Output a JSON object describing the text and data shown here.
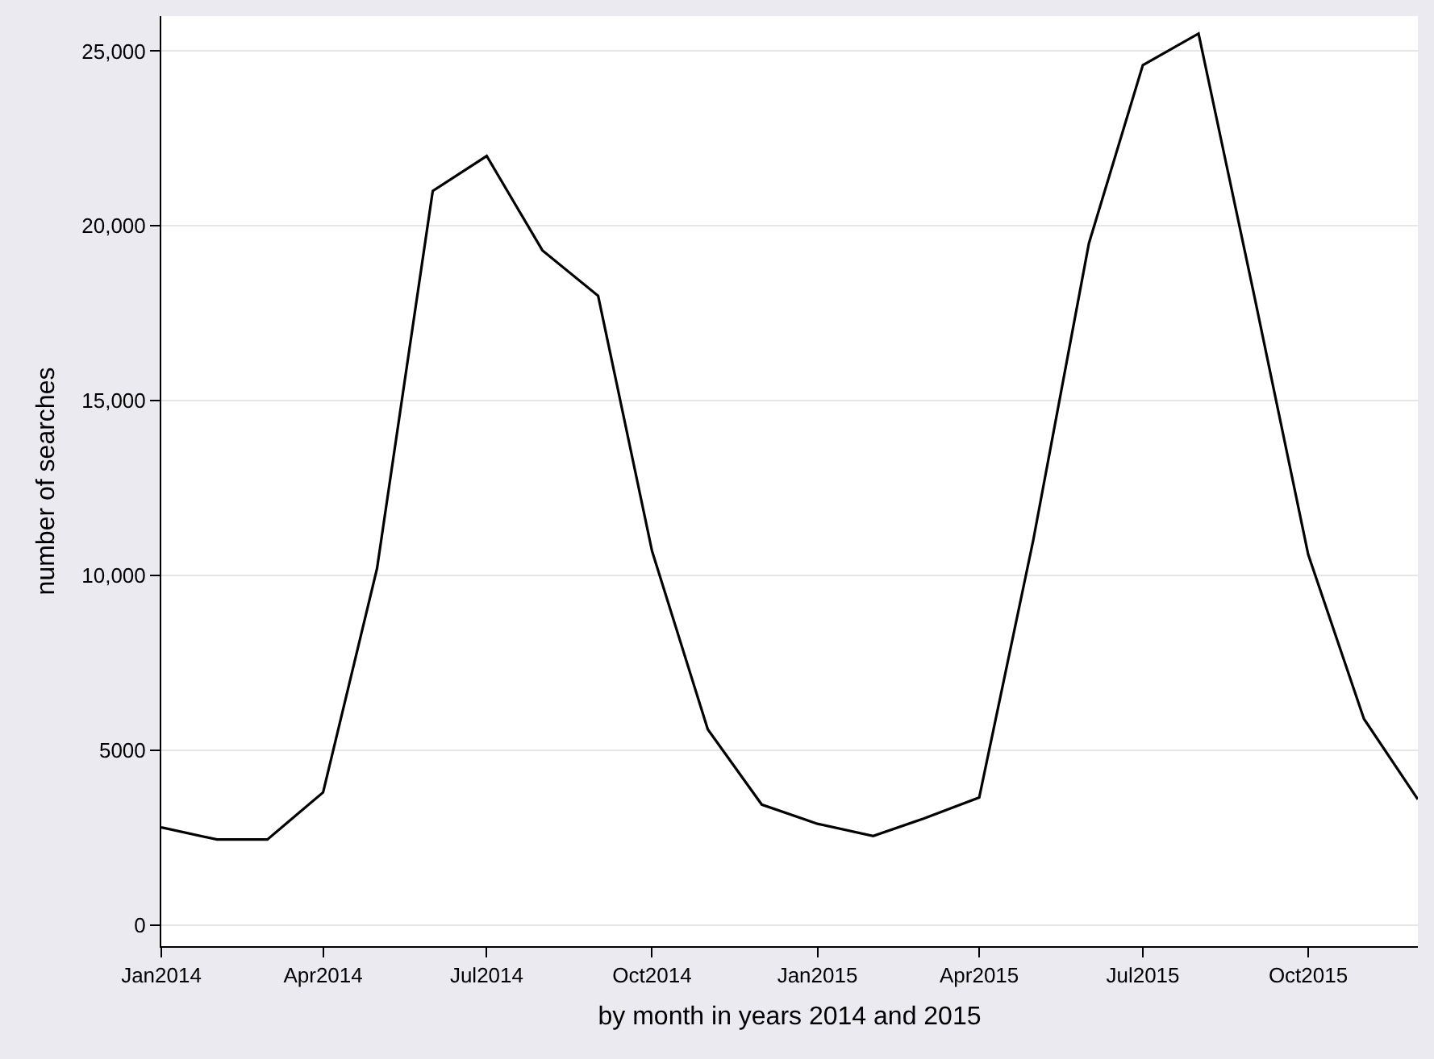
{
  "chart_data": {
    "type": "line",
    "xlabel": "by month in years 2014 and 2015",
    "ylabel": "number of searches",
    "x": [
      "2014-01",
      "2014-02",
      "2014-03",
      "2014-04",
      "2014-05",
      "2014-06",
      "2014-07",
      "2014-08",
      "2014-09",
      "2014-10",
      "2014-11",
      "2014-12",
      "2015-01",
      "2015-02",
      "2015-03",
      "2015-04",
      "2015-05",
      "2015-06",
      "2015-07",
      "2015-08",
      "2015-09",
      "2015-10",
      "2015-11",
      "2015-12"
    ],
    "series": [
      {
        "color": "#000000",
        "values": [
          2800,
          2450,
          2450,
          3800,
          10200,
          21000,
          22000,
          19300,
          18000,
          10700,
          5600,
          3450,
          2900,
          2550,
          3050,
          3650,
          11000,
          19500,
          24600,
          25500,
          18000,
          10600,
          5900,
          3600
        ]
      }
    ],
    "xlim": [
      "2014-01",
      "2015-12"
    ],
    "xticks": [
      {
        "value": "2014-01",
        "label": "Jan2014"
      },
      {
        "value": "2014-04",
        "label": "Apr2014"
      },
      {
        "value": "2014-07",
        "label": "Jul2014"
      },
      {
        "value": "2014-10",
        "label": "Oct2014"
      },
      {
        "value": "2015-01",
        "label": "Jan2015"
      },
      {
        "value": "2015-04",
        "label": "Apr2015"
      },
      {
        "value": "2015-07",
        "label": "Jul2015"
      },
      {
        "value": "2015-10",
        "label": "Oct2015"
      }
    ],
    "ylim": [
      -600,
      26000
    ],
    "yticks": [
      0,
      5000,
      {
        "value": 10000,
        "label": "10,000"
      },
      {
        "value": 15000,
        "label": "15,000"
      },
      {
        "value": 20000,
        "label": "20,000"
      },
      {
        "value": 25000,
        "label": "25,000"
      }
    ],
    "grid": "y",
    "marker": "none",
    "line_style": "solid"
  }
}
